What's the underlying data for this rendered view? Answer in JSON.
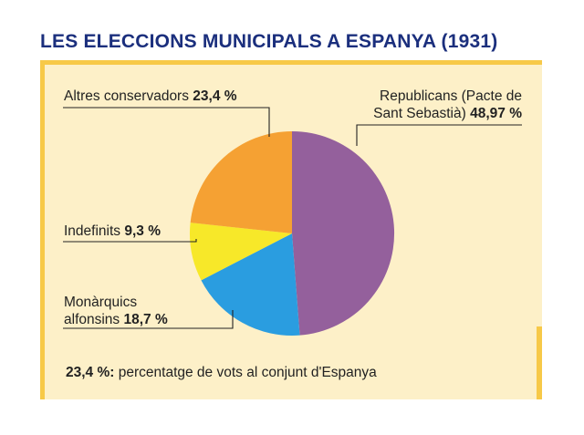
{
  "title": "LES ELECCIONS MUNICIPALS A ESPANYA (1931)",
  "chart_data": {
    "type": "pie",
    "slices": [
      {
        "label_line1": "Republicans (Pacte de",
        "label_line2": "Sant Sebastià)",
        "value": 48.97,
        "value_text": "48,97 %",
        "color": "#94609c"
      },
      {
        "label_line1": "Monàrquics",
        "label_line2": "alfonsins",
        "value": 18.7,
        "value_text": "18,7 %",
        "color": "#2a9de0"
      },
      {
        "label_line1": "Indefinits",
        "label_line2": "",
        "value": 9.3,
        "value_text": "9,3 %",
        "color": "#f7e829"
      },
      {
        "label_line1": "Altres conservadors",
        "label_line2": "",
        "value": 23.4,
        "value_text": "23,4 %",
        "color": "#f5a133"
      }
    ]
  },
  "note": {
    "value": "23,4 %",
    "colon": ":",
    "text": "percentatge de vots al conjunt d'Espanya"
  }
}
